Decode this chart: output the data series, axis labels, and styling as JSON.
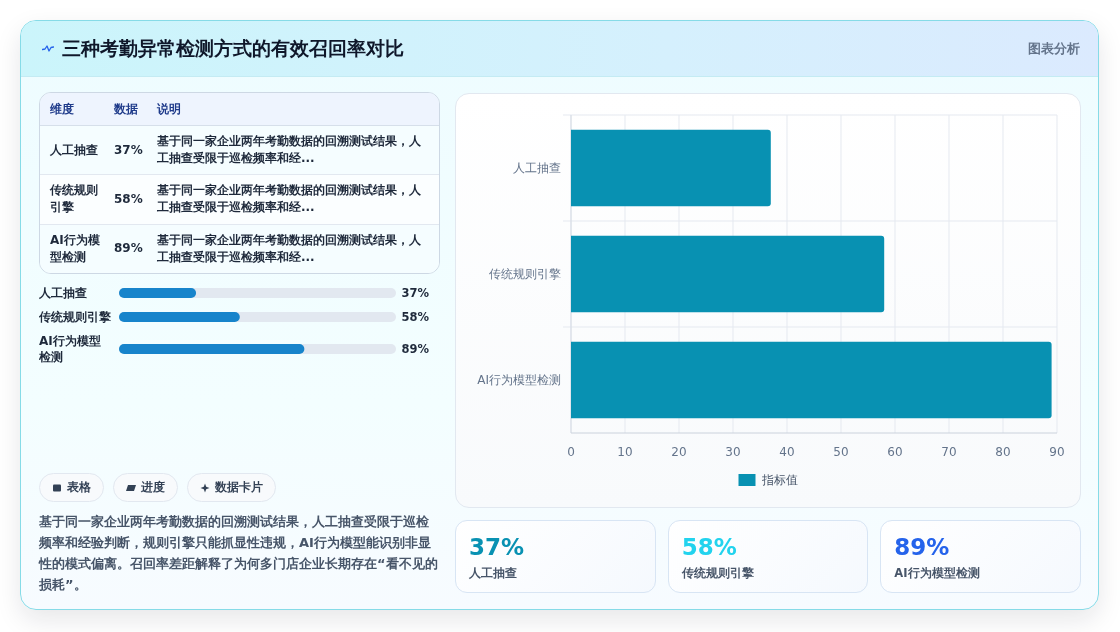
{
  "chart_data": [
    {
      "type": "other",
      "title": "三种考勤异常检测方式的有效召回率对比",
      "annotations": [
        "图表分析"
      ]
    },
    {
      "type": "other",
      "categories": [
        "人工抽查",
        "传统规则引擎",
        "AI行为模型检测"
      ],
      "values": [
        37,
        58,
        89
      ],
      "value_labels": [
        "37%",
        "58%",
        "89%"
      ],
      "annotations": [
        "维度",
        "数据",
        "说明",
        "基于同一家企业两年考勤数据的回溯测试结果，人工抽查受限于巡检频率和经...",
        "基于同一家企业两年考勤数据的回溯测试结果，人工抽查受限于巡检频率和经...",
        "基于同一家企业两年考勤数据的回溯测试结果，人工抽查受限于巡检频率和经..."
      ]
    },
    {
      "type": "bar",
      "orientation": "horizontal",
      "categories": [
        "人工抽查",
        "传统规则引擎",
        "AI行为模型检测"
      ],
      "values": [
        37,
        58,
        89
      ],
      "value_labels": [
        "37%",
        "58%",
        "89%"
      ],
      "color": "#1784cb",
      "xlim": [
        0,
        133
      ],
      "tick_labels": "y"
    },
    {
      "type": "other",
      "annotations": [
        "表格",
        "进度",
        "数据卡片",
        "基于同一家企业两年考勤数据的回溯测试结果，人工抽查受限于巡检频率和经验判断，规则引擎只能抓显性违规，AI行为模型能识别非显性的模式偏离。召回率差距解释了为何多门店企业长期存在“看不见的损耗”。"
      ]
    },
    {
      "type": "bar",
      "orientation": "horizontal",
      "categories": [
        "人工抽查",
        "传统规则引擎",
        "AI行为模型检测"
      ],
      "series": [
        {
          "name": "指标值",
          "color": "#0891b2",
          "values": [
            37,
            58,
            89
          ]
        }
      ],
      "xlim": [
        0,
        90
      ],
      "xticks": [
        0,
        10,
        20,
        30,
        40,
        50,
        60,
        70,
        80,
        90
      ],
      "grid": true,
      "legend": "bottom"
    },
    {
      "type": "other",
      "categories": [
        "人工抽查",
        "传统规则引擎",
        "AI行为模型检测"
      ],
      "values": [
        37,
        58,
        89
      ],
      "value_labels": [
        "37%",
        "58%",
        "89%"
      ]
    }
  ]
}
